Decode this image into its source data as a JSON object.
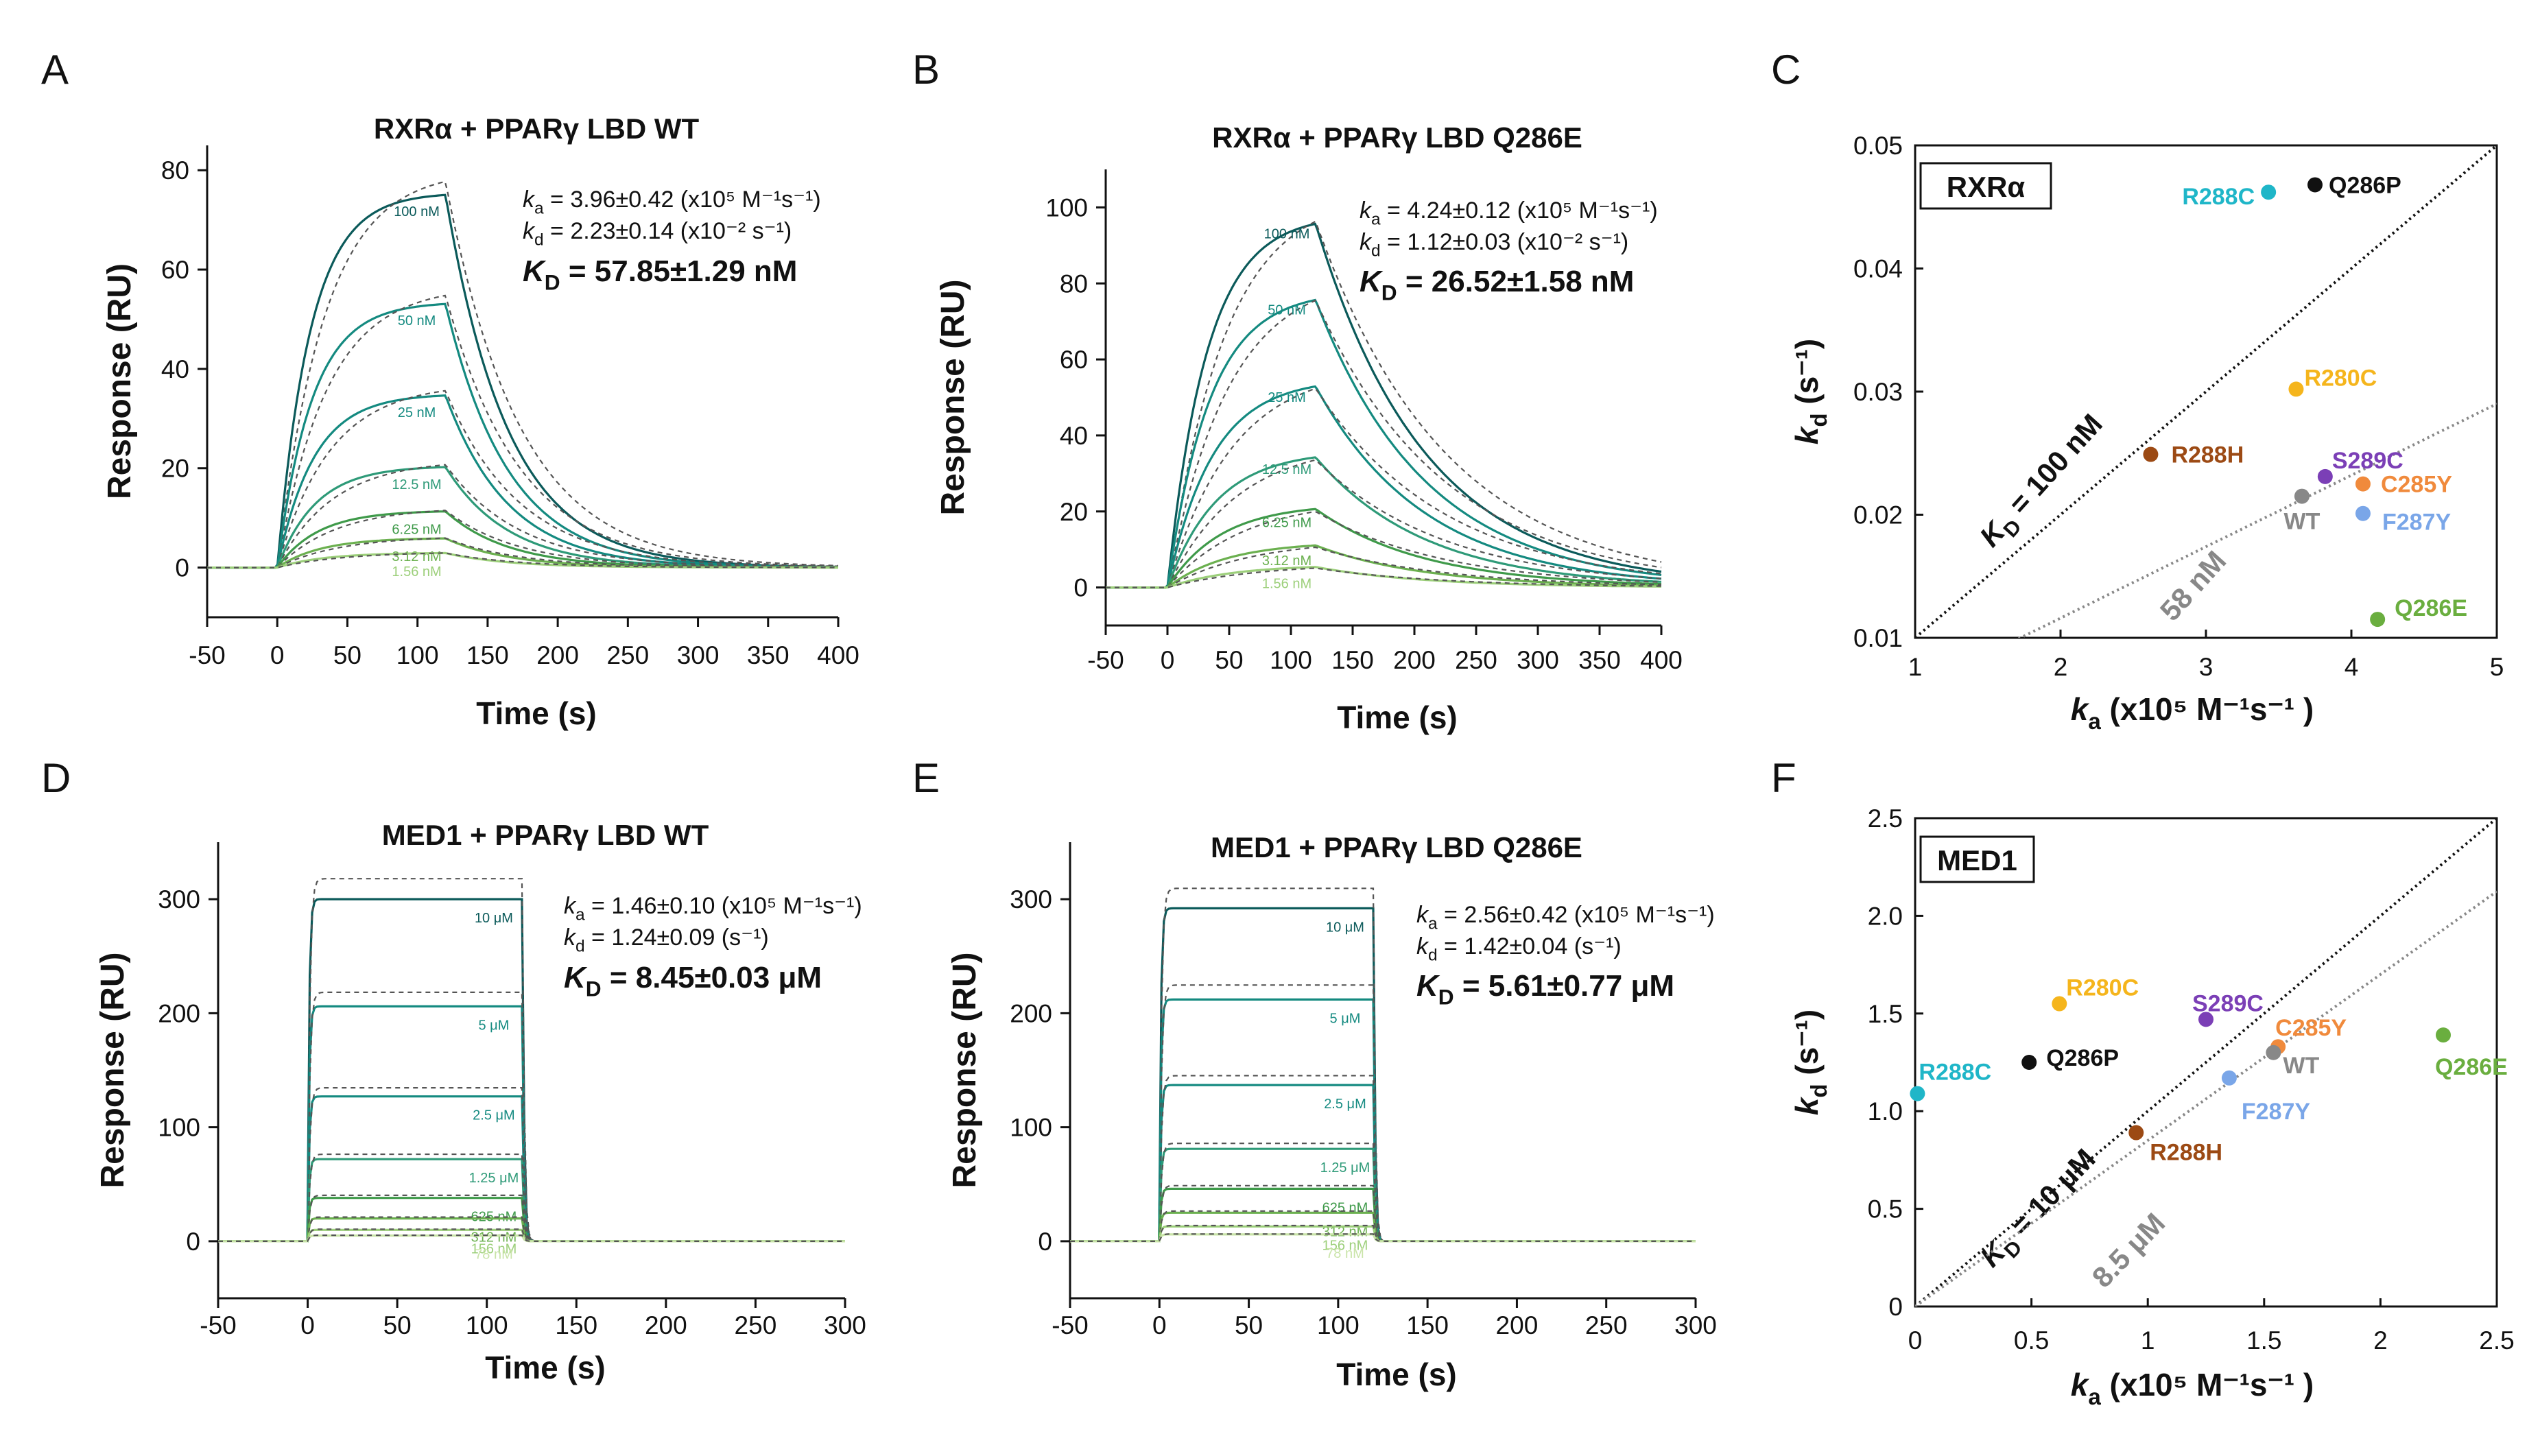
{
  "figure": {
    "colors": {
      "dark_teal": "#0b5a5a",
      "teal": "#148a80",
      "teal_mid": "#2e9a78",
      "green": "#3f9a4a",
      "green_mid": "#6bb04f",
      "green_light": "#9ccf7a",
      "green_pale": "#c9e4a8",
      "fit_dashed": "#555555"
    }
  },
  "chart_data": [
    {
      "panel": "A",
      "type": "line",
      "title": "RXRα + PPARγ LBD WT",
      "xlabel": "Time (s)",
      "ylabel": "Response (RU)",
      "xlim": [
        -50,
        400
      ],
      "ylim": [
        -10,
        85
      ],
      "xticks": [
        -50,
        0,
        50,
        100,
        150,
        200,
        250,
        300,
        350,
        400
      ],
      "yticks": [
        0,
        20,
        40,
        60,
        80
      ],
      "injection_end": 120,
      "ka": 396000.0,
      "kd": 0.0223,
      "curve_labels": [
        "100 nM",
        "50 nM",
        "25 nM",
        "12.5 nM",
        "6.25 nM",
        "3.12 nM",
        "1.56 nM"
      ],
      "plateaus": [
        75.5,
        53.5,
        35,
        20.5,
        11.5,
        6,
        3
      ],
      "annotation": {
        "ka_label": "k",
        "ka_sub": "a",
        "ka_text": "= 3.96±0.42 (x10⁵ M⁻¹s⁻¹)",
        "kd_label": "k",
        "kd_sub": "d",
        "kd_text": "= 2.23±0.14 (x10⁻² s⁻¹)",
        "KD_label": "K",
        "KD_sub": "D",
        "KD_text": "= 57.85±1.29 nM"
      }
    },
    {
      "panel": "B",
      "type": "line",
      "title": "RXRα + PPARγ LBD Q286E",
      "xlabel": "Time (s)",
      "ylabel": "Response (RU)",
      "xlim": [
        -50,
        400
      ],
      "ylim": [
        -10,
        110
      ],
      "xticks": [
        -50,
        0,
        50,
        100,
        150,
        200,
        250,
        300,
        350,
        400
      ],
      "yticks": [
        0,
        20,
        40,
        60,
        80,
        100
      ],
      "injection_end": 120,
      "ka": 424000.0,
      "kd": 0.0112,
      "curve_labels": [
        "100 nM",
        "50 nM",
        "25 nM",
        "12.5 nM",
        "6.25 nM",
        "3.12 nM",
        "1.56 nM"
      ],
      "plateaus": [
        98,
        78,
        55,
        36,
        22,
        12,
        6
      ],
      "annotation": {
        "ka_label": "k",
        "ka_sub": "a",
        "ka_text": "= 4.24±0.12 (x10⁵ M⁻¹s⁻¹)",
        "kd_label": "k",
        "kd_sub": "d",
        "kd_text": "= 1.12±0.03 (x10⁻² s⁻¹)",
        "KD_label": "K",
        "KD_sub": "D",
        "KD_text": "= 26.52±1.58 nM"
      }
    },
    {
      "panel": "C",
      "type": "scatter",
      "box_label": "RXRα",
      "xlabel": "k",
      "xlabel_sub": "a",
      "xlabel_rest": " (x10⁵ M⁻¹s⁻¹ )",
      "ylabel": "k",
      "ylabel_sub": "d",
      "ylabel_rest": " (s⁻¹)",
      "xlim": [
        1,
        5
      ],
      "ylim": [
        0.01,
        0.05
      ],
      "xticks": [
        1,
        2,
        3,
        4,
        5
      ],
      "yticks": [
        0.01,
        0.02,
        0.03,
        0.04,
        0.05
      ],
      "ytick_labels": [
        "0.01",
        "0.02",
        "0.03",
        "0.04",
        "0.05"
      ],
      "lines": [
        {
          "label_main": "K",
          "label_sub": "D",
          "label_rest": " = 100 nM",
          "kd_over_ka": 0.01,
          "color": "#111111"
        },
        {
          "label_main": "58 nM",
          "label_sub": "",
          "label_rest": "",
          "kd_over_ka": 0.0058,
          "color": "#888888"
        }
      ],
      "points": [
        {
          "label": "Q286P",
          "x": 3.75,
          "y": 0.0468,
          "color": "#111111"
        },
        {
          "label": "R288C",
          "x": 3.43,
          "y": 0.0462,
          "color": "#1fb6c8"
        },
        {
          "label": "R280C",
          "x": 3.62,
          "y": 0.0302,
          "color": "#f5b51c"
        },
        {
          "label": "R288H",
          "x": 2.62,
          "y": 0.0249,
          "color": "#9c4a14"
        },
        {
          "label": "S289C",
          "x": 3.82,
          "y": 0.0231,
          "color": "#7b3fb6"
        },
        {
          "label": "C285Y",
          "x": 4.08,
          "y": 0.0225,
          "color": "#f08a3c"
        },
        {
          "label": "WT",
          "x": 3.66,
          "y": 0.0215,
          "color": "#888888"
        },
        {
          "label": "F287Y",
          "x": 4.08,
          "y": 0.0201,
          "color": "#7aa6e8"
        },
        {
          "label": "Q286E",
          "x": 4.18,
          "y": 0.0115,
          "color": "#6aae3f"
        }
      ]
    },
    {
      "panel": "D",
      "type": "line",
      "title": "MED1 + PPARγ LBD WT",
      "xlabel": "Time (s)",
      "ylabel": "Response (RU)",
      "xlim": [
        -50,
        300
      ],
      "ylim": [
        -50,
        350
      ],
      "xticks": [
        -50,
        0,
        50,
        100,
        150,
        200,
        250,
        300
      ],
      "yticks": [
        0,
        100,
        200,
        300
      ],
      "injection_end": 120,
      "ka": 146000.0,
      "kd": 1.24,
      "curve_labels": [
        "10 μM",
        "5 μM",
        "2.5 μM",
        "1.25 μM",
        "625 nM",
        "312 nM",
        "156 nM",
        "78 nM"
      ],
      "plateaus": [
        300,
        206,
        127,
        72,
        38,
        20,
        10,
        5
      ],
      "annotation": {
        "ka_label": "k",
        "ka_sub": "a",
        "ka_text": "= 1.46±0.10 (x10⁵ M⁻¹s⁻¹)",
        "kd_label": "k",
        "kd_sub": "d",
        "kd_text": "= 1.24±0.09 (s⁻¹)",
        "KD_label": "K",
        "KD_sub": "D",
        "KD_text": "= 8.45±0.03 μM"
      }
    },
    {
      "panel": "E",
      "type": "line",
      "title": "MED1 + PPARγ LBD Q286E",
      "xlabel": "Time (s)",
      "ylabel": "Response (RU)",
      "xlim": [
        -50,
        300
      ],
      "ylim": [
        -50,
        350
      ],
      "xticks": [
        -50,
        0,
        50,
        100,
        150,
        200,
        250,
        300
      ],
      "yticks": [
        0,
        100,
        200,
        300
      ],
      "injection_end": 120,
      "ka": 256000.0,
      "kd": 1.42,
      "curve_labels": [
        "10 μM",
        "5 μM",
        "2.5 μM",
        "1.25 μM",
        "625 nM",
        "312 nM",
        "156 nM",
        "78 nM"
      ],
      "plateaus": [
        292,
        212,
        137,
        81,
        46,
        25,
        13,
        6
      ],
      "annotation": {
        "ka_label": "k",
        "ka_sub": "a",
        "ka_text": "= 2.56±0.42 (x10⁵ M⁻¹s⁻¹)",
        "kd_label": "k",
        "kd_sub": "d",
        "kd_text": "= 1.42±0.04 (s⁻¹)",
        "KD_label": "K",
        "KD_sub": "D",
        "KD_text": "= 5.61±0.77 μM"
      }
    },
    {
      "panel": "F",
      "type": "scatter",
      "box_label": "MED1",
      "xlabel": "k",
      "xlabel_sub": "a",
      "xlabel_rest": " (x10⁵ M⁻¹s⁻¹ )",
      "ylabel": "k",
      "ylabel_sub": "d",
      "ylabel_rest": " (s⁻¹)",
      "xlim": [
        0,
        2.5
      ],
      "ylim": [
        0,
        2.5
      ],
      "xticks": [
        0,
        0.5,
        1,
        1.5,
        2,
        2.5
      ],
      "xtick_labels": [
        "0",
        "0.5",
        "1",
        "1.5",
        "2",
        "2.5"
      ],
      "yticks": [
        0,
        0.5,
        1,
        1.5,
        2,
        2.5
      ],
      "ytick_labels": [
        "0",
        "0.5",
        "1.0",
        "1.5",
        "2.0",
        "2.5"
      ],
      "lines": [
        {
          "label_main": "K",
          "label_sub": "D",
          "label_rest": " = 10 μM",
          "kd_over_ka": 1.0,
          "color": "#111111"
        },
        {
          "label_main": "8.5 μM",
          "label_sub": "",
          "label_rest": "",
          "kd_over_ka": 0.85,
          "color": "#888888"
        }
      ],
      "points": [
        {
          "label": "R280C",
          "x": 0.62,
          "y": 1.55,
          "color": "#f5b51c"
        },
        {
          "label": "S289C",
          "x": 1.25,
          "y": 1.47,
          "color": "#7b3fb6"
        },
        {
          "label": "C285Y",
          "x": 1.56,
          "y": 1.33,
          "color": "#f08a3c"
        },
        {
          "label": "Q286E",
          "x": 2.27,
          "y": 1.39,
          "color": "#6aae3f"
        },
        {
          "label": "WT",
          "x": 1.54,
          "y": 1.3,
          "color": "#888888"
        },
        {
          "label": "Q286P",
          "x": 0.49,
          "y": 1.25,
          "color": "#111111"
        },
        {
          "label": "F287Y",
          "x": 1.35,
          "y": 1.17,
          "color": "#7aa6e8"
        },
        {
          "label": "R288C",
          "x": 0.01,
          "y": 1.09,
          "color": "#1fb6c8"
        },
        {
          "label": "R288H",
          "x": 0.95,
          "y": 0.89,
          "color": "#9c4a14"
        }
      ]
    }
  ]
}
